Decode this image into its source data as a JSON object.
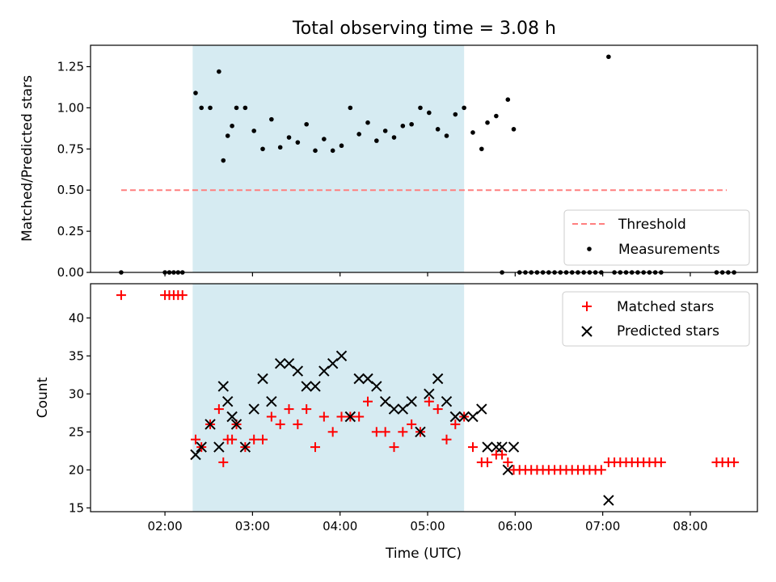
{
  "title": "Total observing time = 3.08 h",
  "chart_data": [
    {
      "type": "scatter",
      "ylabel": "Matched/Predicted stars",
      "xlim": [
        69,
        526
      ],
      "ylim": [
        0.0,
        1.38
      ],
      "yticks": [
        0.0,
        0.25,
        0.5,
        0.75,
        1.0,
        1.25
      ],
      "ytick_labels": [
        "0.00",
        "0.25",
        "0.50",
        "0.75",
        "1.00",
        "1.25"
      ],
      "xticks": [
        120,
        180,
        240,
        300,
        360,
        420,
        480
      ],
      "shaded_span": [
        139,
        325
      ],
      "shade_color": "#add8e6",
      "grid": false,
      "legend_position": "lower-right",
      "threshold": {
        "name": "Threshold",
        "y": 0.5,
        "x_range": [
          90,
          505
        ],
        "color": "#ff7f7f",
        "style": "dashed"
      },
      "series": [
        {
          "name": "Measurements",
          "color": "#000000",
          "marker": "dot",
          "x": [
            90,
            120,
            123,
            126,
            129,
            132,
            141,
            145,
            151,
            157,
            160,
            163,
            166,
            169,
            175,
            181,
            187,
            193,
            199,
            205,
            211,
            217,
            223,
            229,
            235,
            241,
            247,
            253,
            259,
            265,
            271,
            277,
            283,
            289,
            295,
            301,
            307,
            313,
            319,
            325,
            331,
            337,
            341,
            347,
            351,
            355,
            359,
            363,
            367,
            371,
            375,
            379,
            383,
            387,
            391,
            395,
            399,
            403,
            407,
            411,
            415,
            419,
            424,
            428,
            432,
            436,
            440,
            444,
            448,
            452,
            456,
            460,
            498,
            502,
            506,
            510
          ],
          "y": [
            0.0,
            0.0,
            0.0,
            0.0,
            0.0,
            0.0,
            1.09,
            1.0,
            1.0,
            1.22,
            0.68,
            0.83,
            0.89,
            1.0,
            1.0,
            0.86,
            0.75,
            0.93,
            0.76,
            0.82,
            0.79,
            0.9,
            0.74,
            0.81,
            0.74,
            0.77,
            1.0,
            0.84,
            0.91,
            0.8,
            0.86,
            0.82,
            0.89,
            0.9,
            1.0,
            0.97,
            0.87,
            0.83,
            0.96,
            1.0,
            0.85,
            0.75,
            0.91,
            0.95,
            0.0,
            1.05,
            0.87,
            0.0,
            0.0,
            0.0,
            0.0,
            0.0,
            0.0,
            0.0,
            0.0,
            0.0,
            0.0,
            0.0,
            0.0,
            0.0,
            0.0,
            0.0,
            1.31,
            0.0,
            0.0,
            0.0,
            0.0,
            0.0,
            0.0,
            0.0,
            0.0,
            0.0,
            0.0,
            0.0,
            0.0,
            0.0
          ]
        }
      ]
    },
    {
      "type": "scatter",
      "xlabel": "Time (UTC)",
      "ylabel": "Count",
      "xlim": [
        69,
        526
      ],
      "ylim": [
        14.5,
        44.5
      ],
      "yticks": [
        15,
        20,
        25,
        30,
        35,
        40
      ],
      "ytick_labels": [
        "15",
        "20",
        "25",
        "30",
        "35",
        "40"
      ],
      "xticks": [
        120,
        180,
        240,
        300,
        360,
        420,
        480
      ],
      "xtick_labels": [
        "02:00",
        "03:00",
        "04:00",
        "05:00",
        "06:00",
        "07:00",
        "08:00"
      ],
      "shaded_span": [
        139,
        325
      ],
      "shade_color": "#add8e6",
      "grid": false,
      "legend_position": "upper-right",
      "series": [
        {
          "name": "Matched stars",
          "color": "#ff0000",
          "marker": "plus",
          "x": [
            90,
            120,
            123,
            126,
            129,
            132,
            141,
            145,
            151,
            157,
            160,
            163,
            166,
            169,
            175,
            181,
            187,
            193,
            199,
            205,
            211,
            217,
            223,
            229,
            235,
            241,
            247,
            253,
            259,
            265,
            271,
            277,
            283,
            289,
            295,
            301,
            307,
            313,
            319,
            325,
            331,
            337,
            341,
            347,
            351,
            355,
            359,
            363,
            367,
            371,
            375,
            379,
            383,
            387,
            391,
            395,
            399,
            403,
            407,
            411,
            415,
            419,
            424,
            428,
            432,
            436,
            440,
            444,
            448,
            452,
            456,
            460,
            498,
            502,
            506,
            510
          ],
          "y": [
            43,
            43,
            43,
            43,
            43,
            43,
            24,
            23,
            26,
            28,
            21,
            24,
            24,
            26,
            23,
            24,
            24,
            27,
            26,
            28,
            26,
            28,
            23,
            27,
            25,
            27,
            27,
            27,
            29,
            25,
            25,
            23,
            25,
            26,
            25,
            29,
            28,
            24,
            26,
            27,
            23,
            21,
            21,
            22,
            22,
            21,
            20,
            20,
            20,
            20,
            20,
            20,
            20,
            20,
            20,
            20,
            20,
            20,
            20,
            20,
            20,
            20,
            21,
            21,
            21,
            21,
            21,
            21,
            21,
            21,
            21,
            21,
            21,
            21,
            21,
            21
          ]
        },
        {
          "name": "Predicted stars",
          "color": "#000000",
          "marker": "x",
          "x": [
            141,
            145,
            151,
            157,
            160,
            163,
            166,
            169,
            175,
            181,
            187,
            193,
            199,
            205,
            211,
            217,
            223,
            229,
            235,
            241,
            247,
            253,
            259,
            265,
            271,
            277,
            283,
            289,
            295,
            301,
            307,
            313,
            319,
            325,
            331,
            337,
            341,
            347,
            351,
            355,
            359,
            424
          ],
          "y": [
            22,
            23,
            26,
            23,
            31,
            29,
            27,
            26,
            23,
            28,
            32,
            29,
            34,
            34,
            33,
            31,
            31,
            33,
            34,
            35,
            27,
            32,
            32,
            31,
            29,
            28,
            28,
            29,
            25,
            30,
            32,
            29,
            27,
            27,
            27,
            28,
            23,
            23,
            23,
            20,
            23,
            16
          ]
        }
      ]
    }
  ]
}
